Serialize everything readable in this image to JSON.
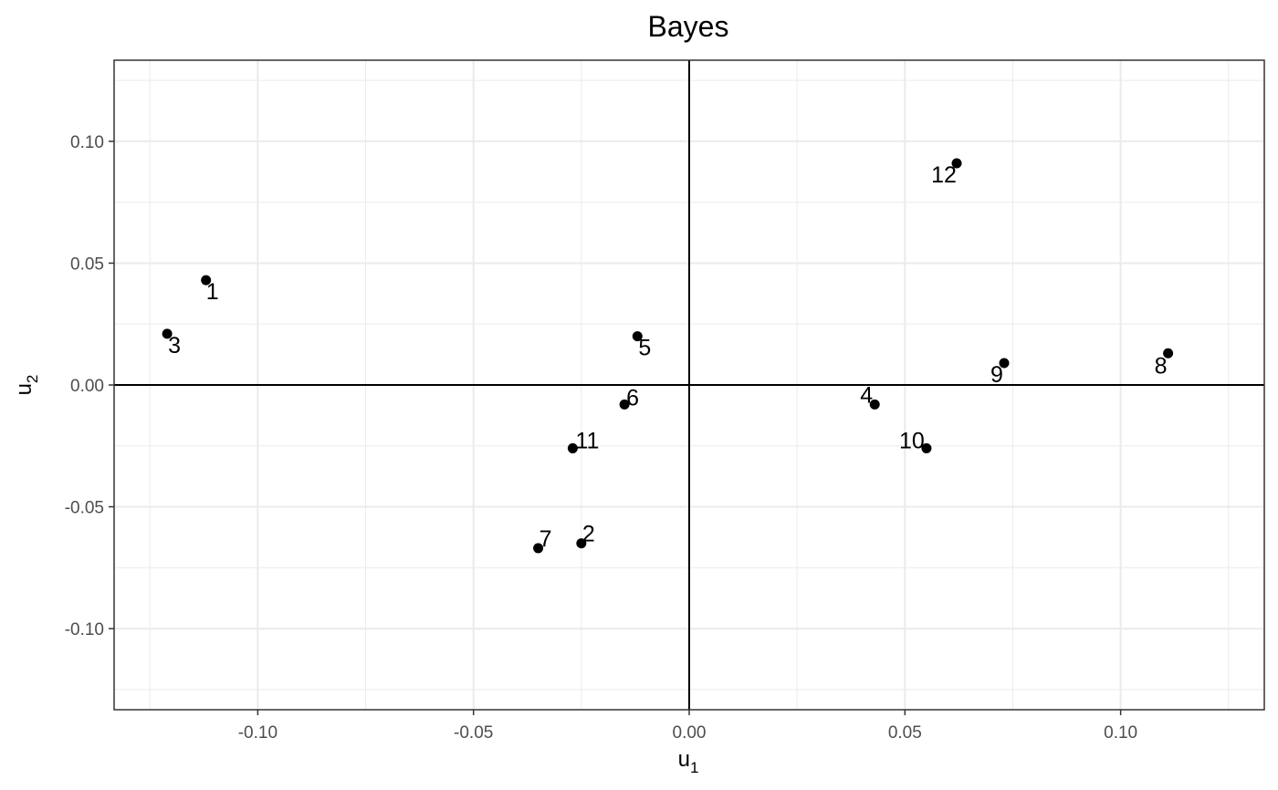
{
  "chart_data": {
    "type": "scatter",
    "title": "Bayes",
    "xlabel": {
      "main": "u",
      "sub": "1"
    },
    "ylabel": {
      "main": "u",
      "sub": "2"
    },
    "xlim": [
      -0.1333,
      0.1333
    ],
    "ylim": [
      -0.1333,
      0.1333
    ],
    "x_ticks": [
      {
        "value": -0.1,
        "label": "-0.10"
      },
      {
        "value": -0.05,
        "label": "-0.05"
      },
      {
        "value": 0.0,
        "label": "0.00"
      },
      {
        "value": 0.05,
        "label": "0.05"
      },
      {
        "value": 0.1,
        "label": "0.10"
      }
    ],
    "y_ticks": [
      {
        "value": 0.1,
        "label": "0.10"
      },
      {
        "value": 0.05,
        "label": "0.05"
      },
      {
        "value": 0.0,
        "label": "0.00"
      },
      {
        "value": -0.05,
        "label": "-0.05"
      },
      {
        "value": -0.1,
        "label": "-0.10"
      }
    ],
    "grid": true,
    "reference_lines": {
      "x": 0,
      "y": 0
    },
    "points": [
      {
        "label": "1",
        "x": -0.112,
        "y": 0.043
      },
      {
        "label": "2",
        "x": -0.025,
        "y": -0.065
      },
      {
        "label": "3",
        "x": -0.121,
        "y": 0.021
      },
      {
        "label": "4",
        "x": 0.043,
        "y": -0.008
      },
      {
        "label": "5",
        "x": -0.012,
        "y": 0.02
      },
      {
        "label": "6",
        "x": -0.015,
        "y": -0.008
      },
      {
        "label": "7",
        "x": -0.035,
        "y": -0.067
      },
      {
        "label": "8",
        "x": 0.111,
        "y": 0.013
      },
      {
        "label": "9",
        "x": 0.073,
        "y": 0.009
      },
      {
        "label": "10",
        "x": 0.055,
        "y": -0.026
      },
      {
        "label": "11",
        "x": -0.027,
        "y": -0.026
      },
      {
        "label": "12",
        "x": 0.062,
        "y": 0.091
      }
    ],
    "point_color": "#000000"
  }
}
